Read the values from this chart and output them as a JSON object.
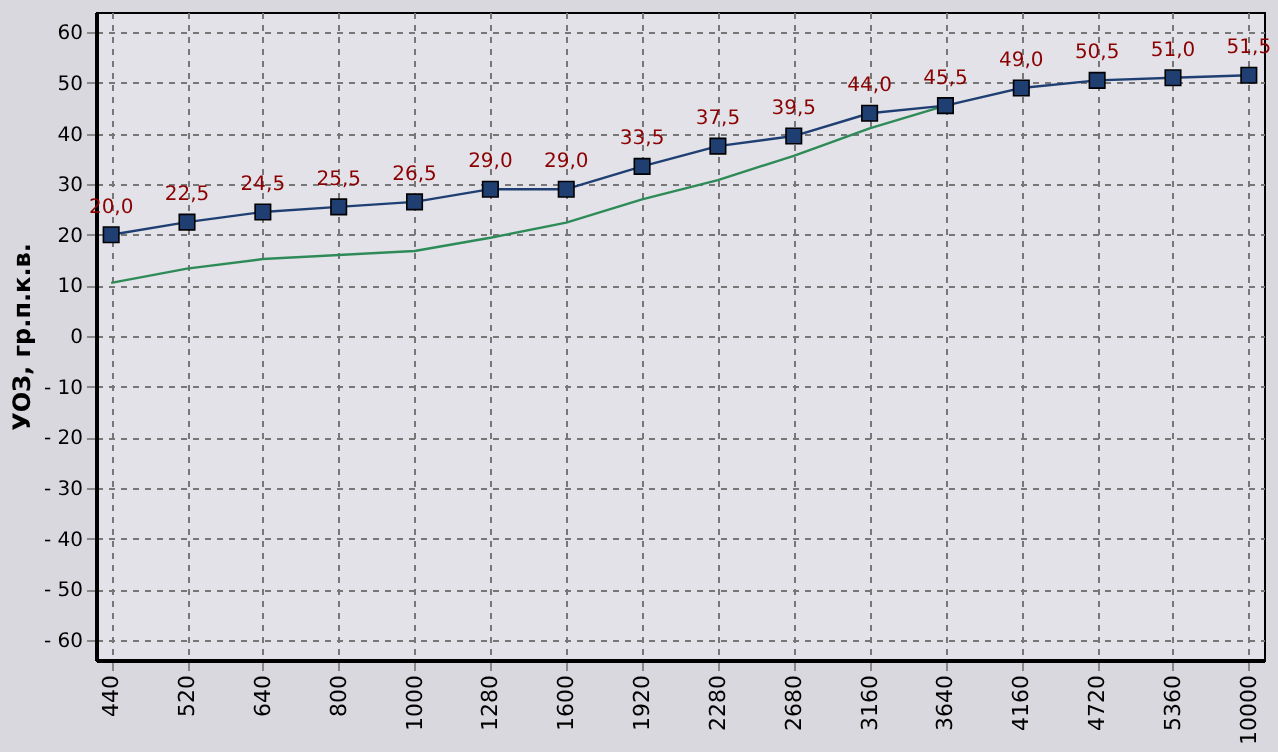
{
  "chart_data": {
    "type": "line",
    "ylabel": "УОЗ, гр.п.к.в.",
    "categories": [
      "440",
      "520",
      "640",
      "800",
      "1000",
      "1280",
      "1600",
      "1920",
      "2280",
      "2680",
      "3160",
      "3640",
      "4160",
      "4720",
      "5360",
      "10000"
    ],
    "series": [
      {
        "color": "#2e8b57",
        "marker": "none",
        "values": [
          10.5,
          13.3,
          15.2,
          16.0,
          16.8,
          19.4,
          22.4,
          27.0,
          30.8,
          35.6,
          41.0,
          45.5,
          null,
          null,
          null,
          null
        ]
      },
      {
        "color": "#1f3f73",
        "marker": "square",
        "values": [
          20.0,
          22.5,
          24.5,
          25.5,
          26.5,
          29.0,
          29.0,
          33.5,
          37.5,
          39.5,
          44.0,
          45.5,
          49.0,
          50.5,
          51.0,
          51.5
        ],
        "value_labels": [
          "20,0",
          "22,5",
          "24,5",
          "25,5",
          "26,5",
          "29,0",
          "29,0",
          "33,5",
          "37,5",
          "39,5",
          "44,0",
          "45,5",
          "49,0",
          "50,5",
          "51,0",
          "51,5"
        ]
      }
    ],
    "ylim": [
      -64,
      64
    ],
    "yticks": [
      {
        "value": -60,
        "label": "- 60"
      },
      {
        "value": -50,
        "label": "- 50"
      },
      {
        "value": -40,
        "label": "- 40"
      },
      {
        "value": -30,
        "label": "- 30"
      },
      {
        "value": -20,
        "label": "- 20"
      },
      {
        "value": -10,
        "label": "- 10"
      },
      0,
      10,
      20,
      30,
      40,
      50,
      60
    ],
    "grid": true,
    "line_style": "solid"
  }
}
